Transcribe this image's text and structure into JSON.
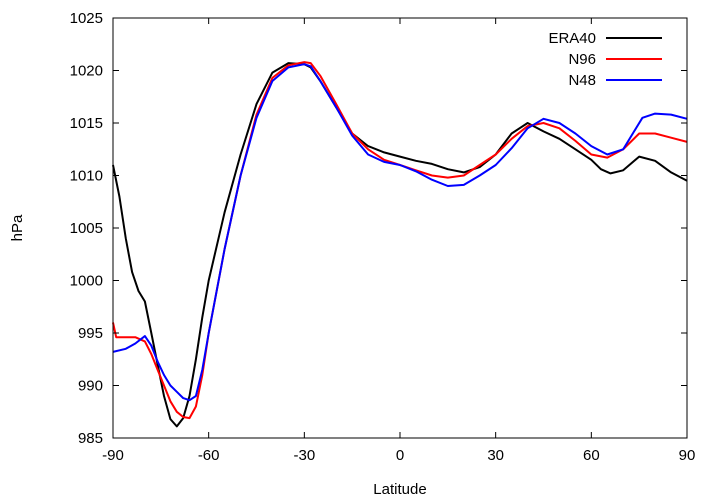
{
  "chart_data": {
    "type": "line",
    "title": "",
    "xlabel": "Latitude",
    "ylabel": "hPa",
    "xlim": [
      -90,
      90
    ],
    "ylim": [
      985,
      1025
    ],
    "xticks": [
      "-90",
      "-60",
      "-30",
      "0",
      "30",
      "60",
      "90"
    ],
    "yticks": [
      "985",
      "990",
      "995",
      "1000",
      "1005",
      "1010",
      "1015",
      "1020",
      "1025"
    ],
    "grid": false,
    "legend_position": "top-right",
    "series": [
      {
        "name": "ERA40",
        "color": "#000000",
        "x": [
          -90,
          -88,
          -86,
          -84,
          -82,
          -80,
          -78,
          -76,
          -74,
          -72,
          -70,
          -68,
          -66,
          -64,
          -62,
          -60,
          -55,
          -50,
          -45,
          -40,
          -35,
          -30,
          -28,
          -25,
          -20,
          -15,
          -10,
          -5,
          0,
          5,
          10,
          15,
          20,
          25,
          30,
          35,
          40,
          45,
          50,
          55,
          60,
          63,
          66,
          70,
          75,
          80,
          85,
          90
        ],
        "y": [
          1011.0,
          1008.0,
          1004.0,
          1000.8,
          999.0,
          998.0,
          995.0,
          992.0,
          989.0,
          986.8,
          986.1,
          986.9,
          989.0,
          992.5,
          996.5,
          1000.0,
          1006.5,
          1012.0,
          1016.8,
          1019.8,
          1020.7,
          1020.6,
          1020.3,
          1019.0,
          1016.5,
          1014.0,
          1012.8,
          1012.2,
          1011.8,
          1011.4,
          1011.1,
          1010.6,
          1010.3,
          1010.8,
          1012.0,
          1014.0,
          1015.0,
          1014.2,
          1013.5,
          1012.5,
          1011.5,
          1010.6,
          1010.2,
          1010.5,
          1011.8,
          1011.4,
          1010.3,
          1009.5
        ]
      },
      {
        "name": "N96",
        "color": "#ff0000",
        "x": [
          -90,
          -89,
          -86,
          -83,
          -80,
          -78,
          -76,
          -74,
          -72,
          -70,
          -68,
          -66,
          -64,
          -62,
          -60,
          -55,
          -50,
          -45,
          -40,
          -35,
          -30,
          -28,
          -25,
          -20,
          -15,
          -10,
          -5,
          0,
          5,
          10,
          15,
          20,
          25,
          30,
          35,
          40,
          45,
          50,
          55,
          60,
          65,
          70,
          75,
          80,
          85,
          90
        ],
        "y": [
          996.0,
          994.6,
          994.6,
          994.6,
          994.2,
          993.0,
          991.5,
          990.0,
          988.5,
          987.5,
          987.0,
          986.9,
          988.0,
          991.0,
          995.0,
          1003.0,
          1010.0,
          1015.8,
          1019.3,
          1020.5,
          1020.8,
          1020.7,
          1019.5,
          1016.8,
          1014.0,
          1012.5,
          1011.5,
          1011.0,
          1010.5,
          1010.0,
          1009.8,
          1010.0,
          1011.0,
          1012.0,
          1013.5,
          1014.7,
          1015.0,
          1014.5,
          1013.3,
          1012.0,
          1011.7,
          1012.5,
          1014.0,
          1014.0,
          1013.6,
          1013.2
        ]
      },
      {
        "name": "N48",
        "color": "#0000ff",
        "x": [
          -90,
          -86,
          -83,
          -80,
          -78,
          -76,
          -74,
          -72,
          -70,
          -68,
          -66,
          -64,
          -62,
          -60,
          -55,
          -50,
          -45,
          -40,
          -35,
          -30,
          -28,
          -25,
          -20,
          -15,
          -10,
          -5,
          0,
          5,
          10,
          15,
          20,
          25,
          30,
          35,
          40,
          45,
          50,
          55,
          60,
          65,
          70,
          73,
          76,
          80,
          85,
          90
        ],
        "y": [
          993.2,
          993.5,
          994.0,
          994.7,
          993.8,
          992.3,
          991.0,
          990.0,
          989.4,
          988.8,
          988.6,
          989.0,
          991.5,
          995.0,
          1003.0,
          1010.0,
          1015.5,
          1019.0,
          1020.3,
          1020.6,
          1020.4,
          1019.0,
          1016.5,
          1013.8,
          1012.0,
          1011.3,
          1011.0,
          1010.4,
          1009.6,
          1009.0,
          1009.1,
          1010.0,
          1011.0,
          1012.6,
          1014.5,
          1015.4,
          1015.0,
          1014.0,
          1012.8,
          1012.0,
          1012.5,
          1014.0,
          1015.5,
          1015.9,
          1015.8,
          1015.4
        ]
      }
    ]
  }
}
